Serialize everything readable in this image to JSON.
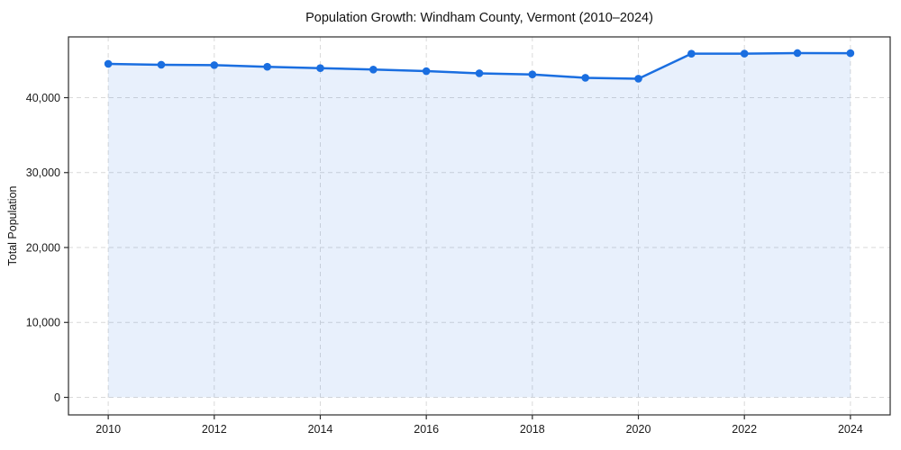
{
  "chart_data": {
    "type": "area",
    "title": "Population Growth: Windham County, Vermont (2010–2024)",
    "xlabel": "",
    "ylabel": "Total Population",
    "series": [
      {
        "name": "Total Population",
        "x": [
          2010,
          2011,
          2012,
          2013,
          2014,
          2015,
          2016,
          2017,
          2018,
          2019,
          2020,
          2021,
          2022,
          2023,
          2024
        ],
        "values": [
          44510,
          44390,
          44340,
          44120,
          43940,
          43750,
          43540,
          43250,
          43100,
          42650,
          42530,
          45870,
          45880,
          45950,
          45940
        ]
      }
    ],
    "xticks": [
      2010,
      2012,
      2014,
      2016,
      2018,
      2020,
      2022,
      2024
    ],
    "yticks": [
      0,
      10000,
      20000,
      30000,
      40000
    ],
    "xlim": [
      2009.25,
      2024.75
    ],
    "ylim": [
      -2340,
      48110
    ],
    "grid": true,
    "grid_style": "dashed",
    "legend": "none",
    "fill_to_zero": true,
    "colors": {
      "line": "#1a6ee0",
      "marker": "#1a6ee0",
      "fill": "#1a6ee0",
      "fill_opacity": "0.10",
      "grid": "#d9d9d9",
      "spine": "#2b2b2b",
      "tick_text": "#1a1a1a",
      "background": "#ffffff"
    }
  }
}
